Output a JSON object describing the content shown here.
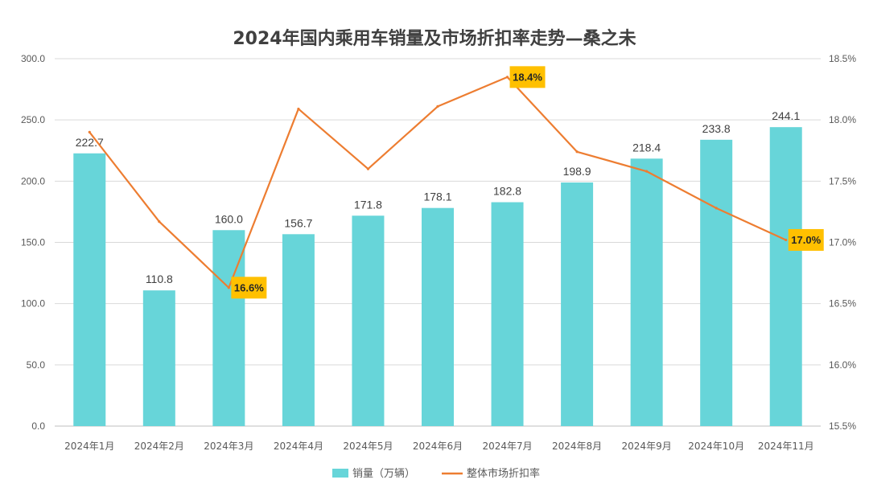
{
  "title": "2024年国内乘用车销量及市场折扣率走势—桑之未",
  "chart_data": {
    "type": "bar",
    "categories": [
      "2024年1月",
      "2024年2月",
      "2024年3月",
      "2024年4月",
      "2024年5月",
      "2024年6月",
      "2024年7月",
      "2024年8月",
      "2024年9月",
      "2024年10月",
      "2024年11月"
    ],
    "series": [
      {
        "name": "销量（万辆）",
        "type": "bar",
        "axis": "left",
        "values": [
          222.7,
          110.8,
          160.0,
          156.7,
          171.8,
          178.1,
          182.8,
          198.9,
          218.4,
          233.8,
          244.1
        ],
        "labels": [
          "222.7",
          "110.8",
          "160.0",
          "156.7",
          "171.8",
          "178.1",
          "182.8",
          "198.9",
          "218.4",
          "233.8",
          "244.1"
        ]
      },
      {
        "name": "整体市场折扣率",
        "type": "line",
        "axis": "right",
        "values": [
          17.9,
          17.17,
          16.63,
          18.09,
          17.6,
          18.11,
          18.35,
          17.74,
          17.58,
          17.28,
          17.02
        ],
        "highlights": [
          {
            "index": 2,
            "label": "16.6%"
          },
          {
            "index": 6,
            "label": "18.4%"
          },
          {
            "index": 10,
            "label": "17.0%"
          }
        ]
      }
    ],
    "y_left": {
      "lim": [
        0,
        300
      ],
      "ticks": [
        "0.0",
        "50.0",
        "100.0",
        "150.0",
        "200.0",
        "250.0",
        "300.0"
      ]
    },
    "y_right": {
      "lim": [
        15.5,
        18.5
      ],
      "ticks": [
        "15.5%",
        "16.0%",
        "16.5%",
        "17.0%",
        "17.5%",
        "18.0%",
        "18.5%"
      ]
    },
    "grid": true,
    "legend": "bottom",
    "colors": {
      "bar": "#67D5D9",
      "line": "#ED7D31",
      "highlight": "#FFC000",
      "grid": "#D9D9D9"
    }
  }
}
